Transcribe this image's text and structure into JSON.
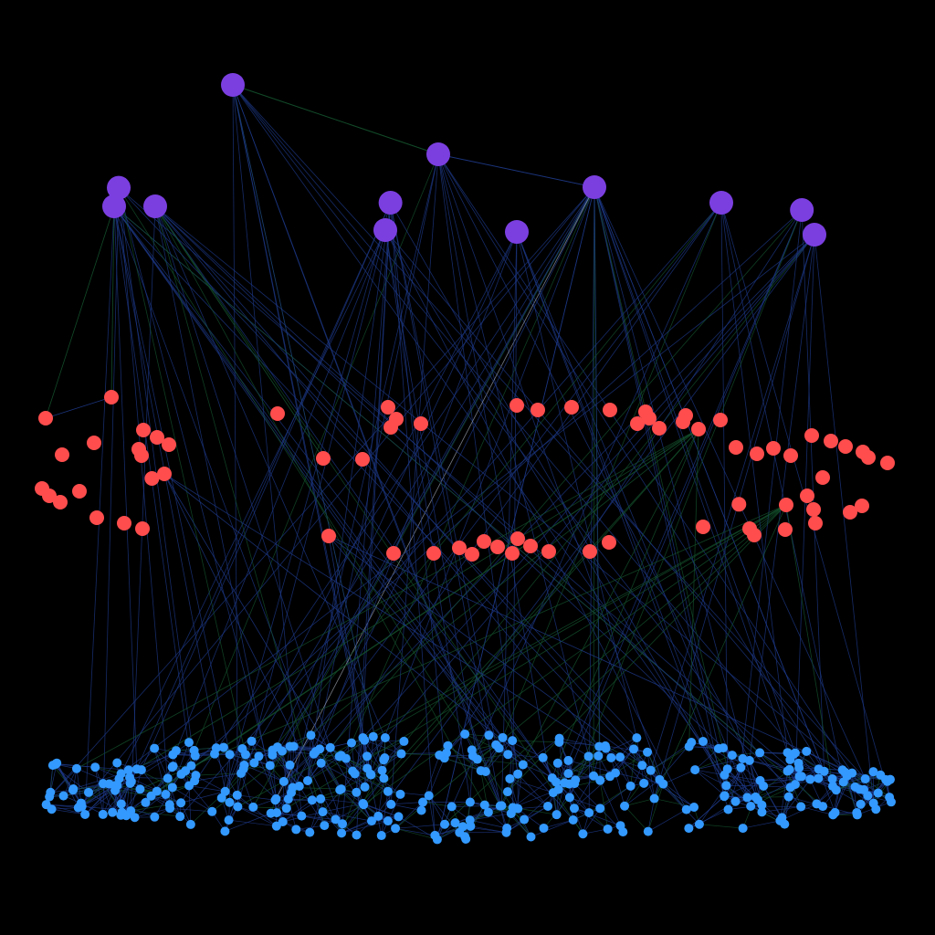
{
  "graph": {
    "background": "#000000",
    "node_colors": {
      "top": "#7b3fe0",
      "middle": "#ff4d4d",
      "bottom": "#3399ff"
    },
    "edge_colors": {
      "blue": "#1e3a8a",
      "green": "#14532d",
      "white": "#9ca3af"
    },
    "tiers": [
      {
        "name": "top",
        "node_count": 12
      },
      {
        "name": "middle",
        "node_count": 72
      },
      {
        "name": "bottom",
        "node_count": 340
      }
    ]
  }
}
